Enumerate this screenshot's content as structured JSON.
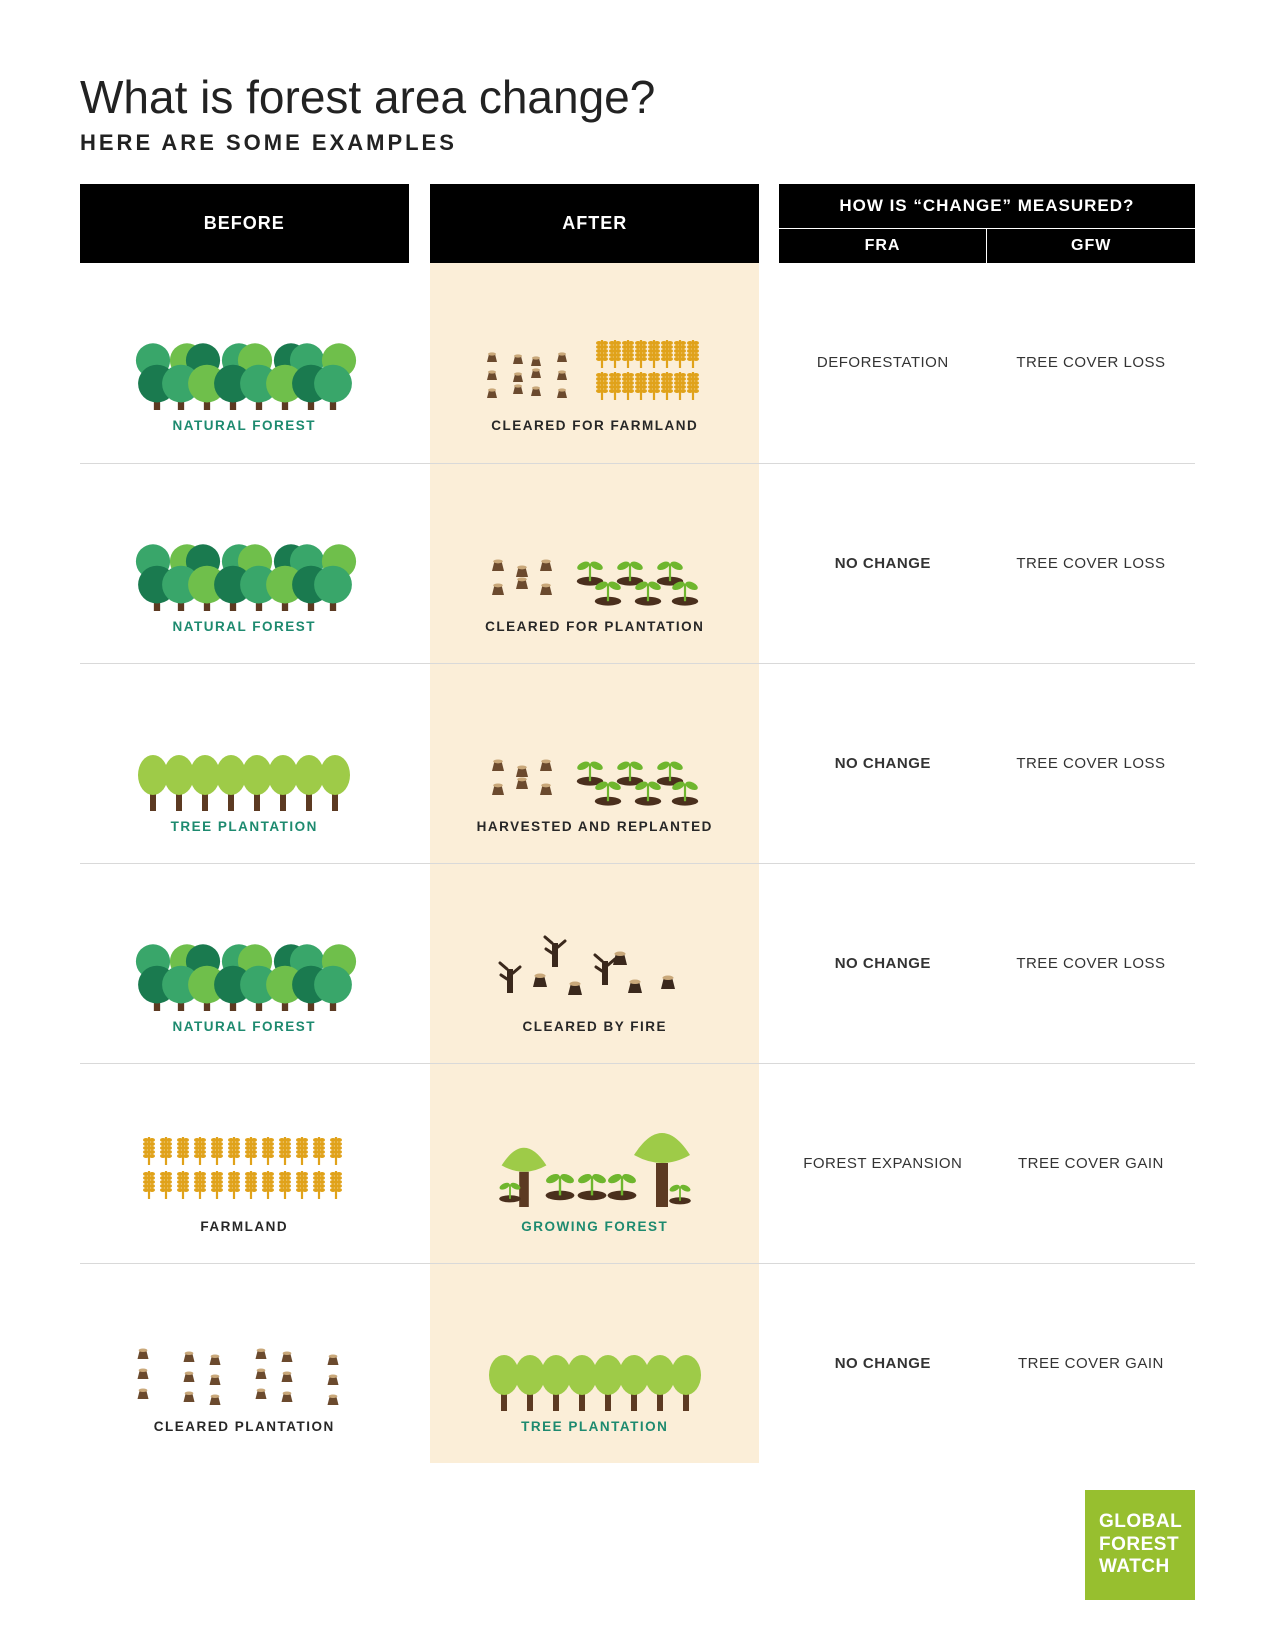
{
  "title": "What is forest area change?",
  "subtitle": "HERE ARE SOME EXAMPLES",
  "headers": {
    "before": "BEFORE",
    "after": "AFTER",
    "measured": "HOW IS “CHANGE” MEASURED?",
    "fra": "FRA",
    "gfw": "GFW"
  },
  "colors": {
    "header_bg": "#000000",
    "header_text": "#ffffff",
    "after_bg": "#fbeed8",
    "teal_text": "#1d8a6f",
    "dark_text": "#272727",
    "divider": "#d9d9d9",
    "logo_bg": "#97bf2f",
    "forest_dark": "#1a7a4f",
    "forest_mid": "#39a66a",
    "forest_light": "#6fbf4b",
    "plantation_green": "#9ecb48",
    "trunk": "#5c3a22",
    "stump": "#6b4a2e",
    "soil": "#4a2f1d",
    "sprout": "#6fb62e",
    "wheat": "#e0a21a",
    "burnt": "#3a281c"
  },
  "rows": [
    {
      "before": {
        "type": "natural-forest",
        "label": "NATURAL FOREST",
        "label_color": "green"
      },
      "after": {
        "type": "cleared-farmland",
        "label": "CLEARED FOR FARMLAND",
        "label_color": "dark"
      },
      "fra": {
        "text": "DEFORESTATION",
        "bold": false
      },
      "gfw": {
        "text": "TREE COVER LOSS",
        "bold": false
      }
    },
    {
      "before": {
        "type": "natural-forest",
        "label": "NATURAL FOREST",
        "label_color": "green"
      },
      "after": {
        "type": "cleared-plantation",
        "label": "CLEARED FOR PLANTATION",
        "label_color": "dark"
      },
      "fra": {
        "text": "NO CHANGE",
        "bold": true
      },
      "gfw": {
        "text": "TREE COVER LOSS",
        "bold": false
      }
    },
    {
      "before": {
        "type": "tree-plantation",
        "label": "TREE PLANTATION",
        "label_color": "green"
      },
      "after": {
        "type": "harvested-replanted",
        "label": "HARVESTED AND REPLANTED",
        "label_color": "dark"
      },
      "fra": {
        "text": "NO CHANGE",
        "bold": true
      },
      "gfw": {
        "text": "TREE COVER LOSS",
        "bold": false
      }
    },
    {
      "before": {
        "type": "natural-forest",
        "label": "NATURAL FOREST",
        "label_color": "green"
      },
      "after": {
        "type": "cleared-fire",
        "label": "CLEARED BY FIRE",
        "label_color": "dark"
      },
      "fra": {
        "text": "NO CHANGE",
        "bold": true
      },
      "gfw": {
        "text": "TREE COVER LOSS",
        "bold": false
      }
    },
    {
      "before": {
        "type": "farmland",
        "label": "FARMLAND",
        "label_color": "dark"
      },
      "after": {
        "type": "growing-forest",
        "label": "GROWING FOREST",
        "label_color": "green"
      },
      "fra": {
        "text": "FOREST EXPANSION",
        "bold": false
      },
      "gfw": {
        "text": "TREE COVER GAIN",
        "bold": false
      }
    },
    {
      "before": {
        "type": "cleared-stumps",
        "label": "CLEARED PLANTATION",
        "label_color": "dark"
      },
      "after": {
        "type": "tree-plantation",
        "label": "TREE PLANTATION",
        "label_color": "green"
      },
      "fra": {
        "text": "NO CHANGE",
        "bold": true
      },
      "gfw": {
        "text": "TREE COVER GAIN",
        "bold": false
      }
    }
  ],
  "logo": {
    "line1": "GLOBAL",
    "line2": "FOREST",
    "line3": "WATCH"
  }
}
